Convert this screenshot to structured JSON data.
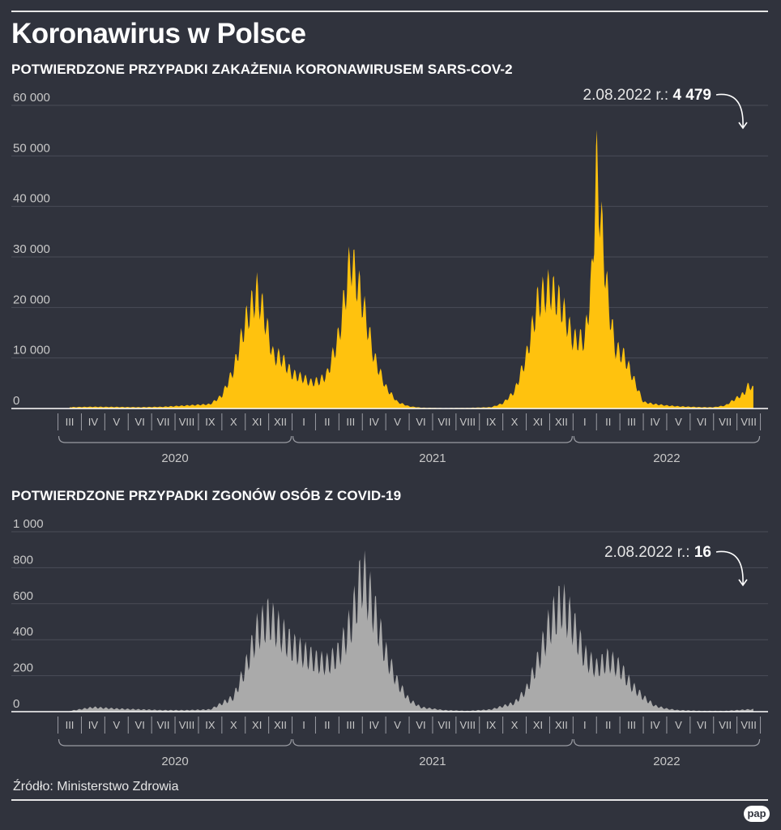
{
  "title": "Koronawirus w Polsce",
  "source": "Źródło: Ministerstwo Zdrowia",
  "logo": "pap",
  "colors": {
    "background": "#30333d",
    "cases": "#ffc20e",
    "deaths": "#aaaaaa",
    "grid": "#4a4d57",
    "axis_text": "#c8c8c8"
  },
  "chart_data": [
    {
      "type": "area",
      "title": "POTWIERDZONE PRZYPADKI ZAKAŻENIA KORONAWIRUSEM SARS-COV-2",
      "color": "#ffc20e",
      "ylim": [
        0,
        60000
      ],
      "yticks": [
        0,
        10000,
        20000,
        30000,
        40000,
        50000,
        60000
      ],
      "ytick_labels": [
        "0",
        "10 000",
        "20 000",
        "30 000",
        "40 000",
        "50 000",
        "60 000"
      ],
      "months": [
        "III",
        "IV",
        "V",
        "VI",
        "VII",
        "VIII",
        "IX",
        "X",
        "XI",
        "XII",
        "I",
        "II",
        "III",
        "IV",
        "V",
        "VI",
        "VII",
        "VIII",
        "IX",
        "X",
        "XI",
        "XII",
        "I",
        "II",
        "III",
        "IV",
        "V",
        "VI",
        "VII",
        "VIII"
      ],
      "years": [
        {
          "label": "2020",
          "first_month": 0,
          "last_month": 9
        },
        {
          "label": "2021",
          "first_month": 10,
          "last_month": 21
        },
        {
          "label": "2022",
          "first_month": 22,
          "last_month": 29
        }
      ],
      "x_unit": "month index (0 = March 2020)",
      "x": [
        0.0,
        1.0,
        2.0,
        3.0,
        4.0,
        5.0,
        6.0,
        6.5,
        7.0,
        7.5,
        8.0,
        8.3,
        8.7,
        9.0,
        9.5,
        10.0,
        10.3,
        10.7,
        11.0,
        11.5,
        12.0,
        12.5,
        13.0,
        13.5,
        14.0,
        14.5,
        15.0,
        16.0,
        17.0,
        18.0,
        18.5,
        19.0,
        19.5,
        20.0,
        20.5,
        21.0,
        21.5,
        22.0,
        22.3,
        22.5,
        22.7,
        23.0,
        23.3,
        23.7,
        24.0,
        24.5,
        25.0,
        25.5,
        26.0,
        26.5,
        27.0,
        27.5,
        28.0,
        28.5,
        28.8,
        29.0,
        29.2
      ],
      "values": [
        300,
        400,
        350,
        300,
        400,
        700,
        1000,
        3000,
        9000,
        20000,
        27000,
        22000,
        12000,
        12000,
        8000,
        7000,
        6000,
        6500,
        8000,
        17000,
        35000,
        25000,
        12000,
        5000,
        1500,
        500,
        200,
        100,
        150,
        300,
        1200,
        4000,
        12000,
        25000,
        28000,
        24000,
        16000,
        16000,
        30000,
        57000,
        43000,
        25000,
        14000,
        12000,
        8000,
        1500,
        1000,
        700,
        500,
        400,
        300,
        300,
        700,
        2500,
        3500,
        5500,
        4479
      ],
      "annotation": {
        "date": "2.08.2022 r.:",
        "value": "4 479"
      }
    },
    {
      "type": "area",
      "title": "POTWIERDZONE PRZYPADKI ZGONÓW OSÓB Z COVID-19",
      "color": "#aaaaaa",
      "ylim": [
        0,
        1000
      ],
      "yticks": [
        0,
        200,
        400,
        600,
        800,
        1000
      ],
      "ytick_labels": [
        "0",
        "200",
        "400",
        "600",
        "800",
        "1 000"
      ],
      "months": [
        "III",
        "IV",
        "V",
        "VI",
        "VII",
        "VIII",
        "IX",
        "X",
        "XI",
        "XII",
        "I",
        "II",
        "III",
        "IV",
        "V",
        "VI",
        "VII",
        "VIII",
        "IX",
        "X",
        "XI",
        "XII",
        "I",
        "II",
        "III",
        "IV",
        "V",
        "VI",
        "VII",
        "VIII"
      ],
      "years": [
        {
          "label": "2020",
          "first_month": 0,
          "last_month": 9
        },
        {
          "label": "2021",
          "first_month": 10,
          "last_month": 21
        },
        {
          "label": "2022",
          "first_month": 22,
          "last_month": 29
        }
      ],
      "x_unit": "month index (0 = March 2020)",
      "x": [
        0.0,
        1.0,
        2.0,
        3.0,
        4.0,
        5.0,
        6.0,
        7.0,
        7.5,
        8.0,
        8.5,
        9.0,
        9.5,
        10.0,
        10.5,
        11.0,
        11.5,
        12.0,
        12.5,
        13.0,
        13.5,
        14.0,
        14.5,
        15.0,
        16.0,
        17.0,
        18.0,
        19.0,
        19.5,
        20.0,
        20.5,
        21.0,
        21.5,
        22.0,
        22.5,
        23.0,
        23.5,
        24.0,
        24.5,
        25.0,
        25.5,
        26.0,
        27.0,
        28.0,
        28.5,
        29.0,
        29.2
      ],
      "values": [
        5,
        30,
        20,
        15,
        10,
        10,
        15,
        100,
        300,
        550,
        650,
        550,
        450,
        400,
        350,
        330,
        400,
        600,
        950,
        700,
        400,
        200,
        80,
        30,
        10,
        5,
        15,
        60,
        150,
        350,
        600,
        750,
        600,
        380,
        300,
        360,
        300,
        180,
        100,
        40,
        20,
        10,
        5,
        5,
        10,
        15,
        16
      ],
      "annotation": {
        "date": "2.08.2022 r.:",
        "value": "16"
      }
    }
  ]
}
